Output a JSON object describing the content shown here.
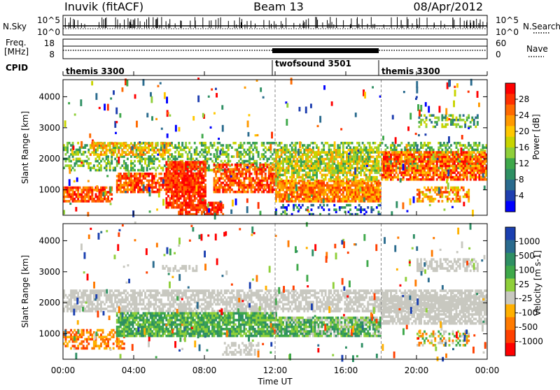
{
  "header": {
    "station": "Inuvik (fitACF)",
    "beam": "Beam 13",
    "date": "08/Apr/2012"
  },
  "top_panels": {
    "nsky_label": "N.Sky",
    "nsearch_label": "N.Search",
    "nsky_ticks": [
      "10^5",
      "10^0"
    ],
    "nsearch_ticks": [
      "10^5",
      "10^0"
    ],
    "freq_label_1": "Freq.",
    "freq_label_2": "[MHz]",
    "freq_ticks": [
      "18",
      "8"
    ],
    "nave_label": "Nave",
    "nave_ticks": [
      "60",
      "0"
    ],
    "cpid_label": "CPID",
    "cpid_segments": [
      {
        "name": "themis 3300",
        "start_h": 0,
        "end_h": 12
      },
      {
        "name": "twofsound 3501",
        "start_h": 12,
        "end_h": 18
      },
      {
        "name": "themis 3300",
        "start_h": 18,
        "end_h": 24
      }
    ]
  },
  "chart_data": [
    {
      "type": "heatmap",
      "title": "Power",
      "xlabel": "",
      "ylabel": "Slant Range [km]",
      "xlim": [
        0,
        24
      ],
      "ylim": [
        180,
        4550
      ],
      "y_ticks": [
        1000,
        2000,
        3000,
        4000
      ],
      "colorbar_label": "Power [dB]",
      "colorbar_ticks": [
        "28",
        "24",
        "20",
        "16",
        "12",
        "8",
        "4"
      ],
      "colorbar_colors": [
        "#ff0000",
        "#ff3000",
        "#ff6a00",
        "#ff9a00",
        "#ffc800",
        "#c8d400",
        "#8fcf3a",
        "#3ea84a",
        "#2e8f63",
        "#2a6b8e",
        "#1f3fb0",
        "#0000ff"
      ],
      "bands": [
        {
          "t0": 0.0,
          "t1": 24.0,
          "r0": 1600,
          "r1": 2500,
          "density": 0.45,
          "levels": [
            5,
            8
          ]
        },
        {
          "t0": 0.0,
          "t1": 2.8,
          "r0": 600,
          "r1": 1100,
          "density": 0.85,
          "levels": [
            0,
            3
          ]
        },
        {
          "t0": 1.5,
          "t1": 6.0,
          "r0": 2100,
          "r1": 2500,
          "density": 0.6,
          "levels": [
            2,
            5
          ]
        },
        {
          "t0": 3.0,
          "t1": 7.5,
          "r0": 900,
          "r1": 1500,
          "density": 0.75,
          "levels": [
            0,
            3
          ]
        },
        {
          "t0": 5.8,
          "t1": 8.0,
          "r0": 400,
          "r1": 1900,
          "density": 0.8,
          "levels": [
            0,
            2
          ]
        },
        {
          "t0": 6.5,
          "t1": 9.0,
          "r0": 180,
          "r1": 600,
          "density": 0.75,
          "levels": [
            0,
            2
          ]
        },
        {
          "t0": 8.5,
          "t1": 12.0,
          "r0": 900,
          "r1": 1800,
          "density": 0.75,
          "levels": [
            0,
            3
          ]
        },
        {
          "t0": 12.0,
          "t1": 18.0,
          "r0": 600,
          "r1": 1300,
          "density": 0.9,
          "levels": [
            1,
            4
          ]
        },
        {
          "t0": 12.0,
          "t1": 18.0,
          "r0": 1300,
          "r1": 2300,
          "density": 0.65,
          "levels": [
            3,
            7
          ]
        },
        {
          "t0": 18.0,
          "t1": 24.0,
          "r0": 1300,
          "r1": 2200,
          "density": 0.8,
          "levels": [
            0,
            4
          ]
        },
        {
          "t0": 20.0,
          "t1": 23.0,
          "r0": 600,
          "r1": 1100,
          "density": 0.5,
          "levels": [
            1,
            5
          ]
        },
        {
          "t0": 20.0,
          "t1": 23.5,
          "r0": 3000,
          "r1": 3400,
          "density": 0.45,
          "levels": [
            5,
            9
          ]
        },
        {
          "t0": 12.0,
          "t1": 18.0,
          "r0": 180,
          "r1": 500,
          "density": 0.3,
          "levels": [
            7,
            11
          ]
        }
      ]
    },
    {
      "type": "heatmap",
      "title": "Velocity",
      "xlabel": "Time UT",
      "ylabel": "Slant Range [km]",
      "xlim": [
        0,
        24
      ],
      "ylim": [
        180,
        4550
      ],
      "x_ticks": [
        "00:00",
        "04:00",
        "08:00",
        "12:00",
        "16:00",
        "20:00",
        "00:00"
      ],
      "y_ticks": [
        1000,
        2000,
        3000,
        4000
      ],
      "colorbar_label": "Velocity [m s-1]",
      "colorbar_ticks": [
        "1000",
        "500",
        "100",
        "25",
        "-25",
        "-100",
        "-500",
        "-1000"
      ],
      "colorbar_colors": [
        "#1a3fb0",
        "#2a6b8e",
        "#2e8f63",
        "#3ea84a",
        "#8fcf3a",
        "#c8c8c0",
        "#ffb000",
        "#ff7a00",
        "#ff4000",
        "#ff0000"
      ],
      "bands": [
        {
          "t0": 0.0,
          "t1": 24.0,
          "r0": 1700,
          "r1": 2400,
          "density": 0.65,
          "levels": [
            5,
            5
          ]
        },
        {
          "t0": 0.0,
          "t1": 3.5,
          "r0": 500,
          "r1": 1100,
          "density": 0.55,
          "levels": [
            6,
            8
          ]
        },
        {
          "t0": 3.0,
          "t1": 12.0,
          "r0": 900,
          "r1": 1700,
          "density": 0.85,
          "levels": [
            2,
            4
          ]
        },
        {
          "t0": 12.0,
          "t1": 18.0,
          "r0": 900,
          "r1": 1500,
          "density": 0.85,
          "levels": [
            2,
            5
          ]
        },
        {
          "t0": 18.0,
          "t1": 24.0,
          "r0": 1300,
          "r1": 2200,
          "density": 0.7,
          "levels": [
            5,
            5
          ]
        },
        {
          "t0": 20.0,
          "t1": 23.5,
          "r0": 3000,
          "r1": 3400,
          "density": 0.55,
          "levels": [
            5,
            5
          ]
        },
        {
          "t0": 5.5,
          "t1": 7.5,
          "r0": 3000,
          "r1": 3200,
          "density": 0.5,
          "levels": [
            5,
            5
          ]
        },
        {
          "t0": 20.0,
          "t1": 23.0,
          "r0": 600,
          "r1": 1100,
          "density": 0.45,
          "levels": [
            3,
            7
          ]
        },
        {
          "t0": 9.0,
          "t1": 11.0,
          "r0": 300,
          "r1": 700,
          "density": 0.5,
          "levels": [
            5,
            5
          ]
        }
      ]
    }
  ]
}
